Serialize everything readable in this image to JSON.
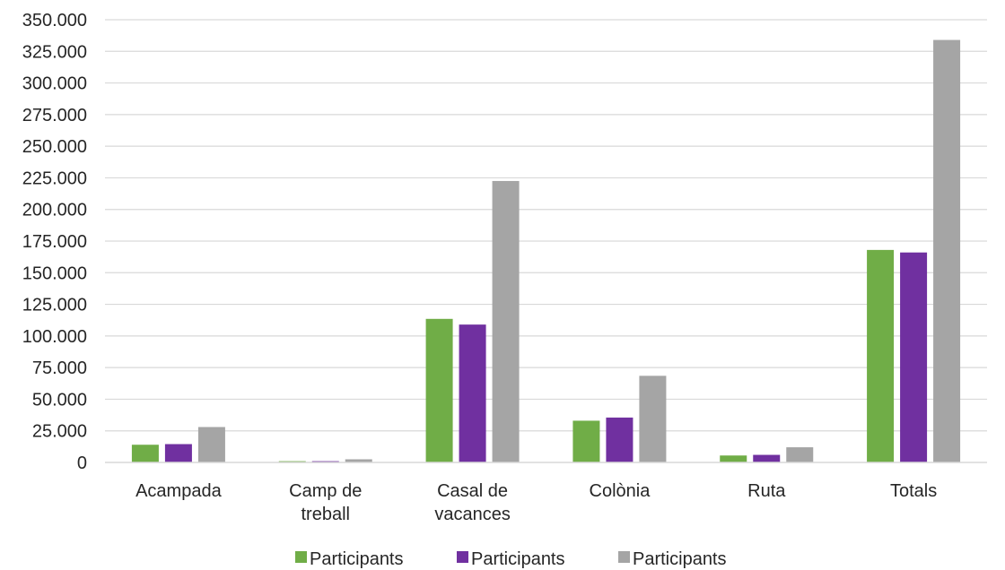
{
  "chart_data": {
    "type": "bar",
    "categories": [
      [
        "Acampada"
      ],
      [
        "Camp de",
        "treball"
      ],
      [
        "Casal de",
        "vacances"
      ],
      [
        "Colònia"
      ],
      [
        "Ruta"
      ],
      [
        "Totals"
      ]
    ],
    "series": [
      {
        "name": "Participants",
        "color": "#70AD47",
        "values": [
          14000,
          1000,
          113500,
          33000,
          5500,
          168000
        ]
      },
      {
        "name": "Participants",
        "color": "#7030A0",
        "values": [
          14500,
          1000,
          109000,
          35500,
          6000,
          166000
        ]
      },
      {
        "name": "Participants",
        "color": "#A5A5A5",
        "values": [
          28000,
          2500,
          222500,
          68500,
          12000,
          334000
        ]
      }
    ],
    "ylim": [
      0,
      350000
    ],
    "y_ticks": [
      0,
      25000,
      50000,
      75000,
      100000,
      125000,
      150000,
      175000,
      200000,
      225000,
      250000,
      275000,
      300000,
      325000,
      350000
    ],
    "y_tick_labels": [
      "0",
      "25.000",
      "50.000",
      "75.000",
      "100.000",
      "125.000",
      "150.000",
      "175.000",
      "200.000",
      "225.000",
      "250.000",
      "275.000",
      "300.000",
      "325.000",
      "350.000"
    ],
    "grid": true,
    "legend": "bottom",
    "title": "",
    "xlabel": "",
    "ylabel": ""
  }
}
